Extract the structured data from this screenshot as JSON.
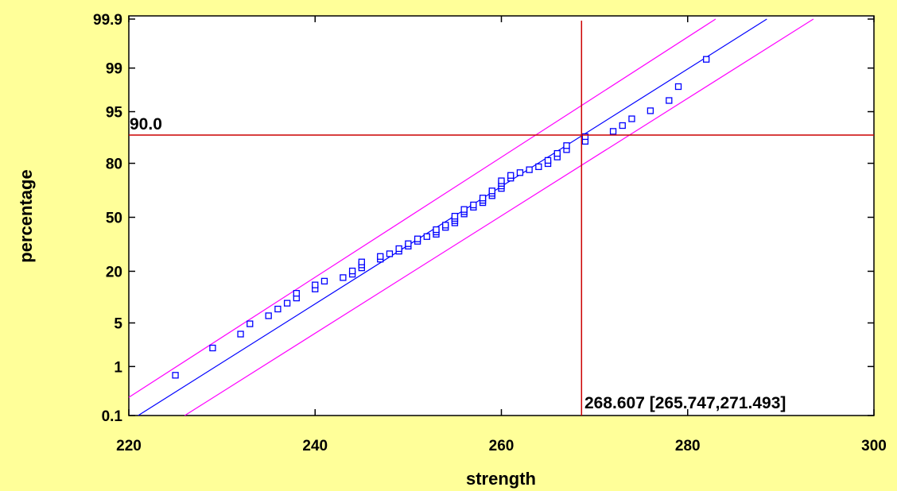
{
  "chart_data": {
    "type": "scatter",
    "title": "",
    "xlabel": "strength",
    "ylabel": "percentage",
    "xlim": [
      220,
      300
    ],
    "y_scale": "normal-probability",
    "x_ticks": [
      220,
      240,
      260,
      280,
      300
    ],
    "y_ticks": [
      0.1,
      1,
      5,
      20,
      50,
      80,
      95,
      99,
      99.9
    ],
    "grid": false,
    "legend": "none",
    "colors": {
      "background": "#FFFF99",
      "plot_area": "#FFFFFF",
      "points": "#0000FF",
      "fit_line": "#0000FF",
      "confidence_limits": "#FF00FF",
      "reference_lines": "#CC0000"
    },
    "fitted_line": {
      "x": [
        221,
        288.5
      ],
      "y": [
        0.1,
        99.9
      ]
    },
    "confidence_upper": {
      "x": [
        220,
        283
      ],
      "y": [
        0.25,
        99.9
      ]
    },
    "confidence_lower": {
      "x": [
        226,
        293.5
      ],
      "y": [
        0.1,
        99.9
      ]
    },
    "reference": {
      "horizontal_percentage": 90.0,
      "horizontal_label": "90.0",
      "vertical_strength": 268.607,
      "vertical_label": "268.607 [265.747,271.493]"
    },
    "series": [
      {
        "x": [
          225,
          229,
          232,
          233,
          235,
          236,
          237,
          238,
          238,
          240,
          240,
          241,
          243,
          244,
          244,
          245,
          245,
          245,
          247,
          247,
          248,
          249,
          249,
          250,
          250,
          251,
          251,
          252,
          253,
          253,
          253,
          254,
          254,
          255,
          255,
          255,
          255,
          256,
          256,
          256,
          257,
          257,
          258,
          258,
          258,
          259,
          259,
          259,
          260,
          260,
          260,
          260,
          261,
          261,
          262,
          263,
          264,
          265,
          265,
          266,
          266,
          267,
          267,
          269,
          269,
          272,
          273,
          274,
          276,
          278,
          279,
          282
        ],
        "y": [
          0.69,
          2.08,
          3.47,
          4.86,
          6.25,
          7.64,
          9.03,
          10.42,
          11.81,
          13.19,
          14.58,
          15.97,
          17.36,
          18.75,
          20.14,
          21.53,
          22.92,
          24.31,
          25.69,
          27.08,
          28.47,
          29.86,
          31.25,
          32.64,
          34.03,
          35.42,
          36.81,
          38.19,
          39.58,
          40.97,
          42.36,
          43.75,
          45.14,
          46.53,
          47.92,
          49.31,
          50.69,
          52.08,
          53.47,
          54.86,
          56.25,
          57.64,
          59.03,
          60.42,
          61.81,
          63.19,
          64.58,
          65.97,
          67.36,
          68.75,
          70.14,
          71.53,
          72.92,
          74.31,
          75.69,
          77.08,
          78.47,
          79.86,
          81.25,
          82.64,
          84.03,
          85.42,
          86.81,
          88.19,
          89.58,
          90.97,
          92.36,
          93.75,
          95.14,
          96.53,
          97.92,
          99.31
        ]
      }
    ]
  }
}
